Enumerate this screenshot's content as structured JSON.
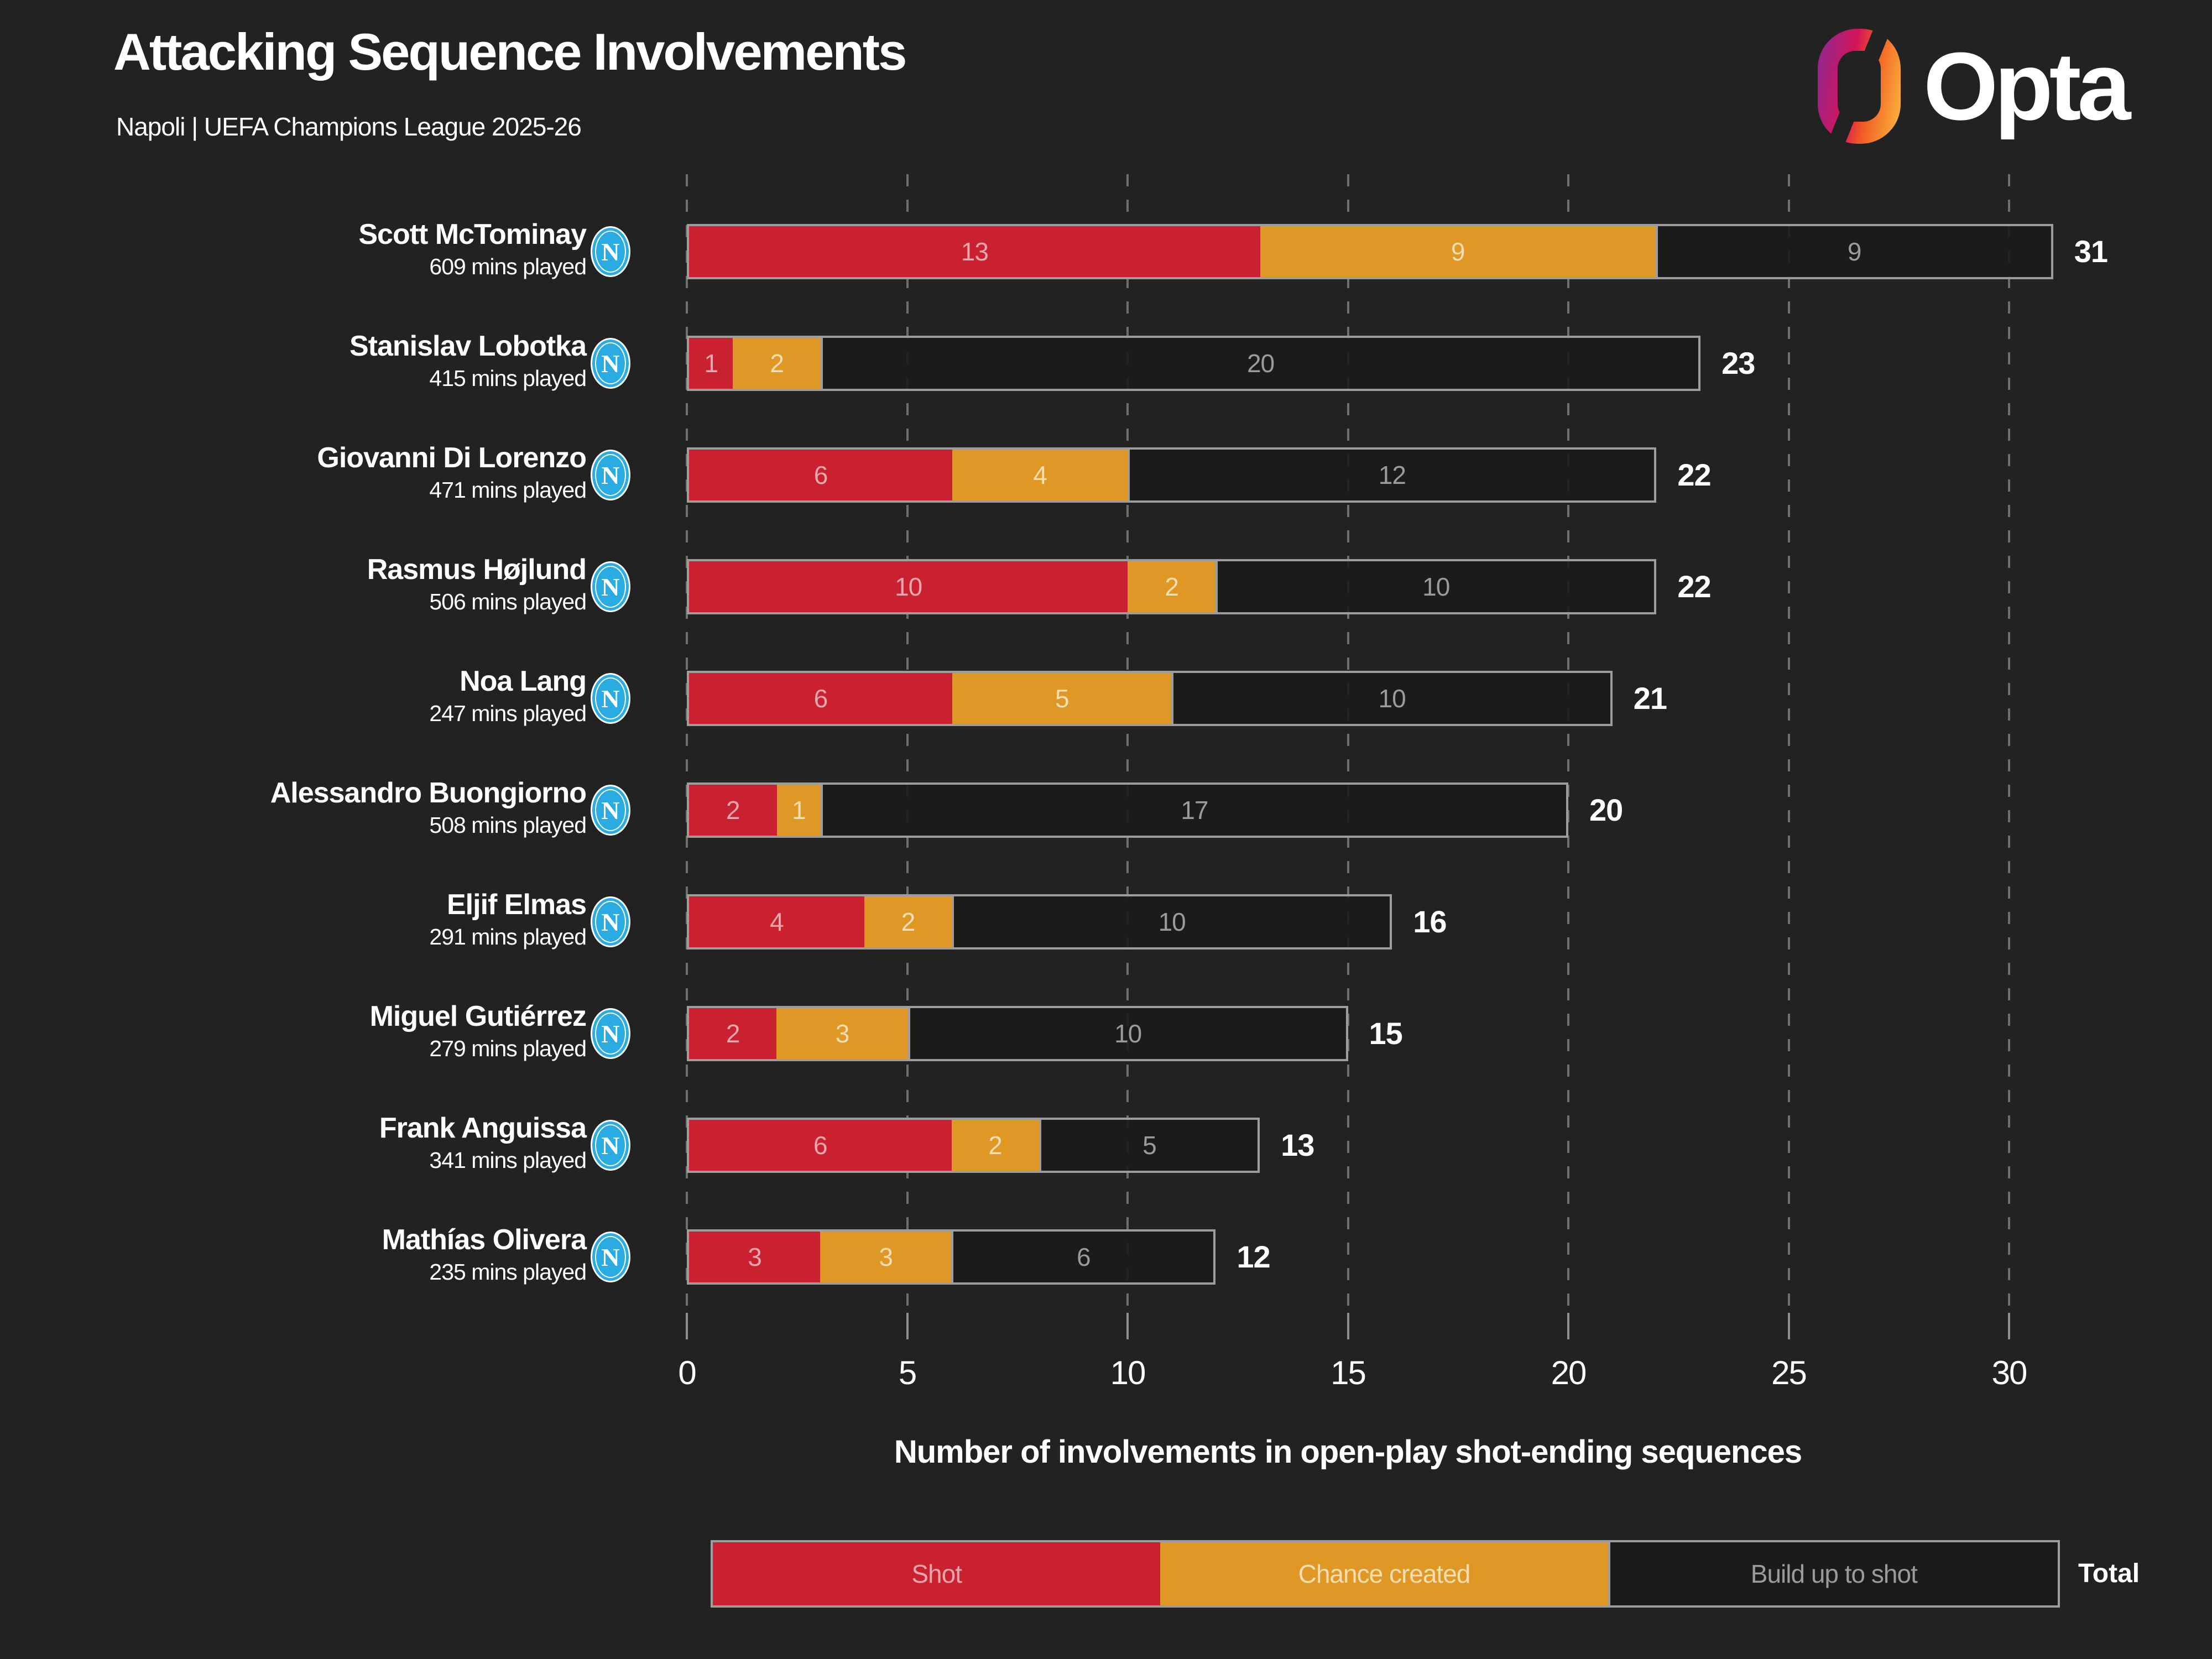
{
  "header": {
    "title": "Attacking Sequence Involvements",
    "subtitle": "Napoli | UEFA Champions League 2025-26",
    "brand_name": "Opta"
  },
  "badge": {
    "letter": "N",
    "color": "#2aabe2"
  },
  "colors": {
    "background": "#222222",
    "shot": "#c92130",
    "chance_created": "#df9825",
    "build_up_fill": "rgba(26,26,26,0.88)",
    "bar_border": "#9d9d9d",
    "grid": "#6f6f6f",
    "shot_label": "#eda6ad",
    "chance_label": "#f5deb0",
    "build_label": "#9b9b9b",
    "total_label": "#ffffff",
    "badge_blue": "#2aabe2",
    "brand_gradient": [
      "#93278f",
      "#d4145a",
      "#f15a24",
      "#fbb03b"
    ]
  },
  "chart_data": {
    "type": "bar",
    "variant": "horizontal-stacked",
    "title": "Attacking Sequence Involvements",
    "subtitle": "Napoli | UEFA Champions League 2025-26",
    "xlabel": "Number of involvements in open-play shot-ending sequences",
    "xlim": [
      0,
      30
    ],
    "x_ticks": [
      0,
      5,
      10,
      15,
      20,
      25,
      30
    ],
    "grid": "dashed-vertical",
    "legend_position": "bottom",
    "categories": [
      "Scott McTominay",
      "Stanislav Lobotka",
      "Giovanni Di Lorenzo",
      "Rasmus Højlund",
      "Noa Lang",
      "Alessandro Buongiorno",
      "Eljif Elmas",
      "Miguel Gutiérrez",
      "Frank Anguissa",
      "Mathías Olivera"
    ],
    "mins_played": [
      "609 mins played",
      "415 mins played",
      "471 mins played",
      "506 mins played",
      "247 mins played",
      "508 mins played",
      "291 mins played",
      "279 mins played",
      "341 mins played",
      "235 mins played"
    ],
    "series": [
      {
        "name": "Shot",
        "color": "#c92130",
        "values": [
          13,
          1,
          6,
          10,
          6,
          2,
          4,
          2,
          6,
          3
        ]
      },
      {
        "name": "Chance created",
        "color": "#df9825",
        "values": [
          9,
          2,
          4,
          2,
          5,
          1,
          2,
          3,
          2,
          3
        ]
      },
      {
        "name": "Build up to shot",
        "color": "rgba(26,26,26,0.88)",
        "values": [
          9,
          20,
          12,
          10,
          10,
          17,
          10,
          10,
          5,
          6
        ]
      }
    ],
    "totals": [
      31,
      23,
      22,
      22,
      21,
      20,
      16,
      15,
      13,
      12
    ],
    "legend": {
      "items": [
        "Shot",
        "Chance created",
        "Build up to shot"
      ],
      "total_label": "Total"
    }
  }
}
